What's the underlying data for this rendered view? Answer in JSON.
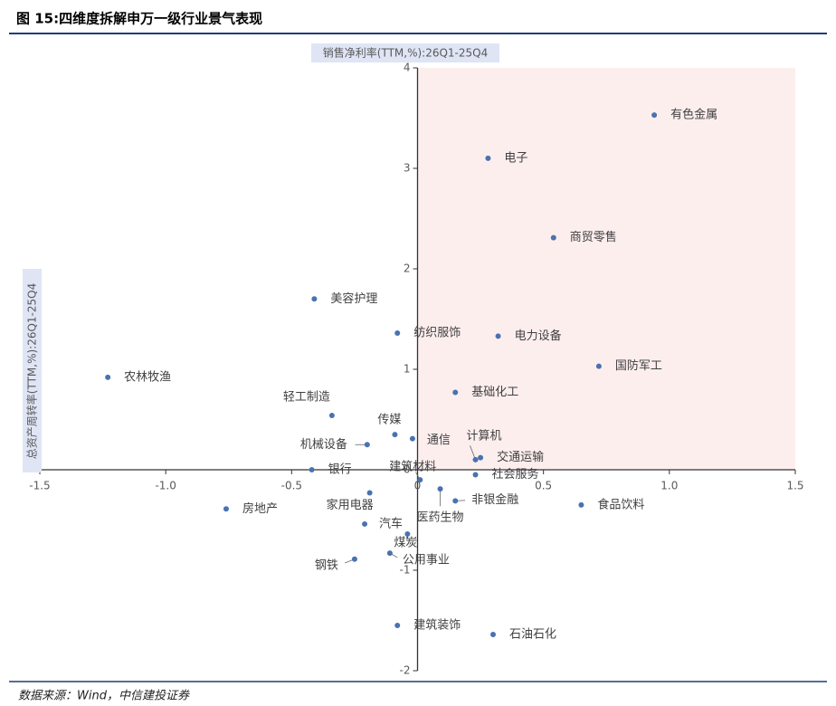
{
  "chart_data": {
    "type": "scatter",
    "title": "图 15:四维度拆解申万一级行业景气表现",
    "x_label": "销售净利率(TTM,%):26Q1-25Q4",
    "y_label": "总资产周转率(TTM,%):26Q1-25Q4",
    "source": "数据来源：Wind，中信建投证券",
    "color": "#4a72b0",
    "highlight_color": "#fdeeee",
    "labels": [
      "有色金属",
      "电子",
      "商贸零售",
      "美容护理",
      "纺织服饰",
      "电力设备",
      "国防军工",
      "农林牧渔",
      "基础化工",
      "轻工制造",
      "传媒",
      "通信",
      "机械设备",
      "计算机",
      "交通运输",
      "银行",
      "建筑材料",
      "社会服务",
      "家用电器",
      "医药生物",
      "非银金融",
      "食品饮料",
      "房地产",
      "汽车",
      "煤炭",
      "公用事业",
      "钢铁",
      "建筑装饰",
      "石油石化"
    ],
    "x": [
      0.94,
      0.28,
      0.54,
      -0.41,
      -0.08,
      0.32,
      0.72,
      -1.23,
      0.15,
      -0.34,
      -0.09,
      -0.02,
      -0.2,
      0.23,
      0.25,
      -0.42,
      0.01,
      0.23,
      -0.19,
      0.09,
      0.15,
      0.65,
      -0.76,
      -0.21,
      -0.04,
      -0.11,
      -0.25,
      -0.08,
      0.3
    ],
    "y": [
      3.53,
      3.1,
      2.31,
      1.7,
      1.36,
      1.33,
      1.03,
      0.92,
      0.77,
      0.54,
      0.35,
      0.31,
      0.25,
      0.1,
      0.12,
      0.0,
      -0.1,
      -0.05,
      -0.23,
      -0.19,
      -0.31,
      -0.35,
      -0.39,
      -0.54,
      -0.64,
      -0.83,
      -0.89,
      -1.55,
      -1.64
    ],
    "xlim": [
      -1.5,
      1.5
    ],
    "ylim": [
      -2,
      4
    ],
    "xticks": [
      -1.5,
      {
        "value": -1,
        "label": "-1.0"
      },
      -0.5,
      0,
      0.5,
      {
        "value": 1,
        "label": "1.0"
      },
      1.5
    ],
    "yticks": [
      -2,
      -1,
      0,
      1,
      2,
      3,
      4
    ]
  }
}
